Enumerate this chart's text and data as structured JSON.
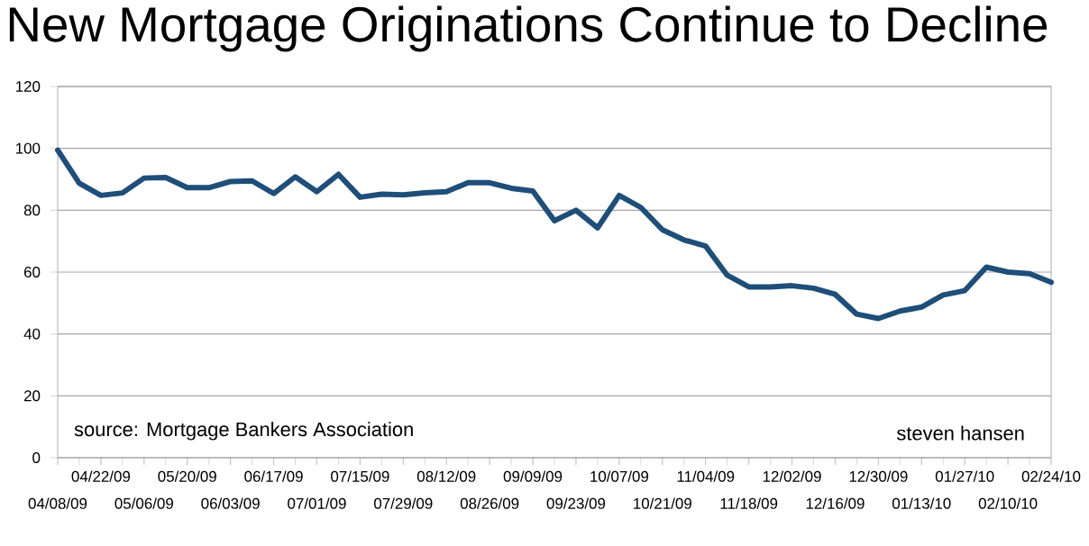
{
  "chart_data": {
    "type": "line",
    "title": "New Mortgage Originations Continue to Decline",
    "categories": [
      "04/08/09",
      null,
      "04/22/09",
      null,
      "05/06/09",
      null,
      "05/20/09",
      null,
      "06/03/09",
      null,
      "06/17/09",
      null,
      "07/01/09",
      null,
      "07/15/09",
      null,
      "07/29/09",
      null,
      "08/12/09",
      null,
      "08/26/09",
      null,
      "09/09/09",
      null,
      "09/23/09",
      null,
      "10/07/09",
      null,
      "10/21/09",
      null,
      "11/04/09",
      null,
      "11/18/09",
      null,
      "12/02/09",
      null,
      "12/16/09",
      null,
      "12/30/09",
      null,
      "01/13/10",
      null,
      "01/27/10",
      null,
      "02/10/10",
      null,
      "02/24/10"
    ],
    "series": [
      {
        "color": "#1f4e79",
        "values": [
          99.4,
          88.7,
          84.8,
          85.6,
          90.4,
          90.6,
          87.3,
          87.3,
          89.3,
          89.5,
          85.4,
          90.8,
          86,
          91.6,
          84.2,
          85.2,
          85,
          85.6,
          86,
          88.9,
          88.9,
          87.1,
          86.2,
          76.6,
          80,
          74.3,
          84.8,
          80.9,
          73.7,
          70.4,
          68.4,
          59,
          55.2,
          55.2,
          55.6,
          54.8,
          52.8,
          46.4,
          45,
          47.4,
          48.7,
          52.6,
          54,
          61.6,
          60,
          59.5,
          56.7
        ]
      }
    ],
    "ylim": [
      0,
      120
    ],
    "yticks": [
      0,
      20,
      40,
      60,
      80,
      100,
      120
    ],
    "grid": "y",
    "marker": "none",
    "line_style": "solid",
    "annotations": [
      "source: Mortgage Bankers Association",
      "steven hansen"
    ]
  }
}
